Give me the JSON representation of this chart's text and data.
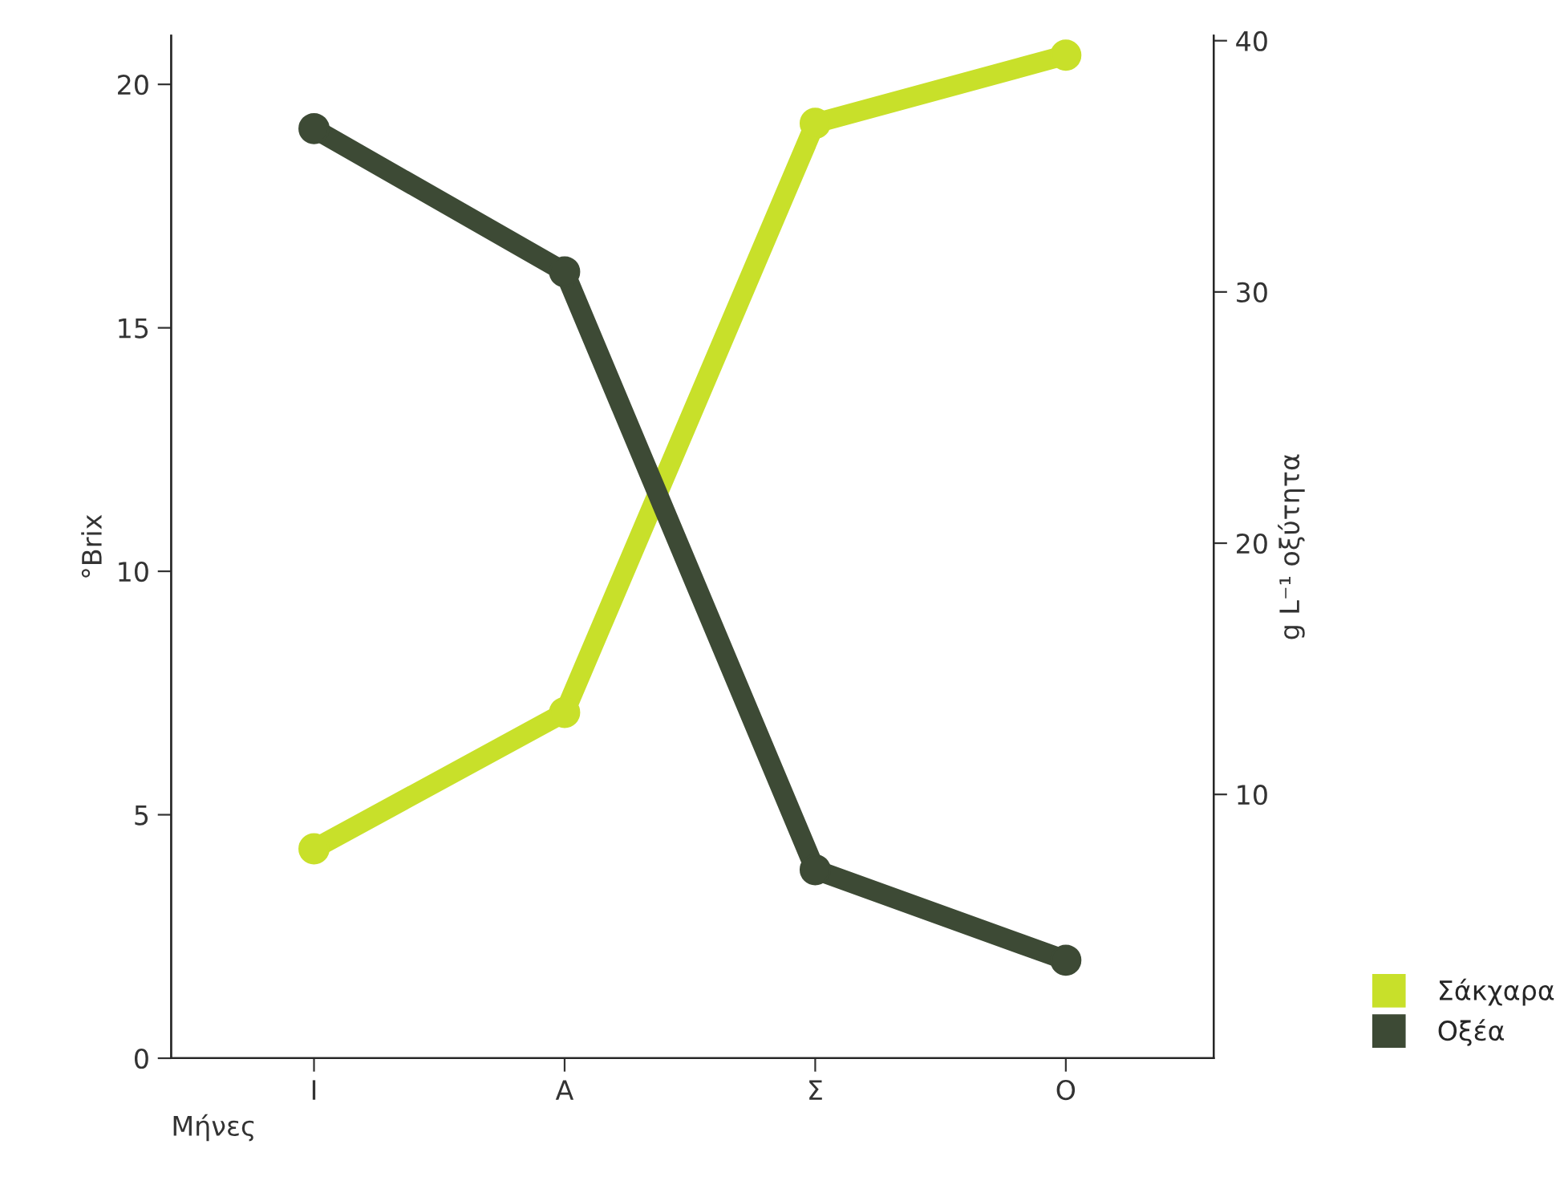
{
  "chart_data": {
    "type": "line",
    "xlabel": "Μήνες",
    "ylabel": "°Brix",
    "y2label": "g L⁻¹ οξύτητα",
    "categories": [
      "Ι",
      "Α",
      "Σ",
      "Ο"
    ],
    "ylim": [
      0,
      21
    ],
    "yticks": [
      0,
      5,
      10,
      15,
      20
    ],
    "y2lim": [
      -0.5,
      40.2
    ],
    "y2ticks": [
      10,
      20,
      30,
      40
    ],
    "series": [
      {
        "name": "Σάκχαρα",
        "color": "#c8e02a",
        "values": [
          4.3,
          7.1,
          19.2,
          20.6
        ]
      },
      {
        "name": "Οξέα",
        "color": "#3d4a35",
        "axis": "y2",
        "values": [
          36.5,
          30.8,
          7.0,
          3.4
        ]
      }
    ],
    "marker": "circle",
    "line_style": "solid",
    "grid": false,
    "legend": "bottom right"
  }
}
